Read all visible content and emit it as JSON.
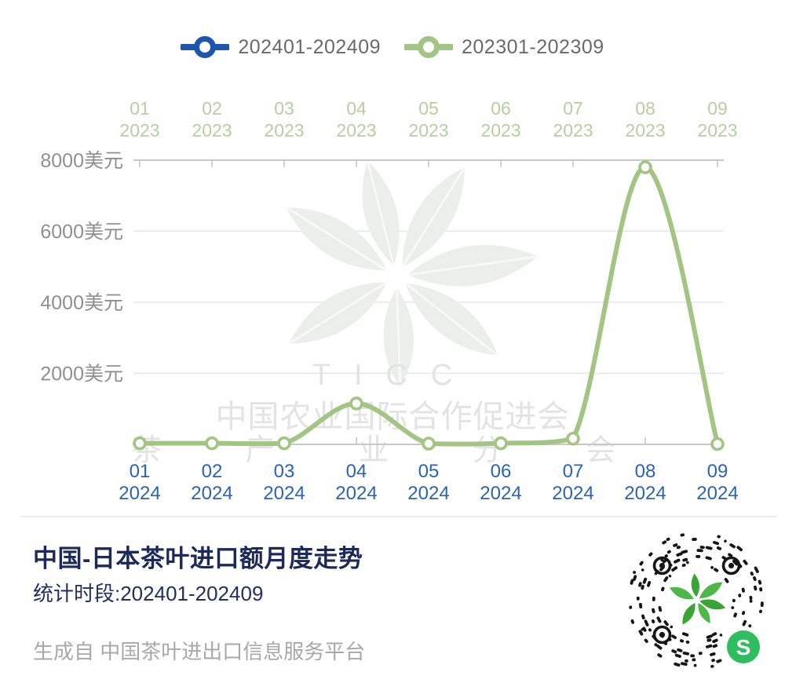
{
  "legend": {
    "items": [
      {
        "label": "202401-202409",
        "color": "#1e56ad"
      },
      {
        "label": "202301-202309",
        "color": "#a2c583"
      }
    ]
  },
  "chart_data": {
    "type": "line",
    "smooth": true,
    "grid": true,
    "legend_position": "top",
    "categories_top": [
      "01 2023",
      "02 2023",
      "03 2023",
      "04 2023",
      "05 2023",
      "06 2023",
      "07 2023",
      "08 2023",
      "09 2023"
    ],
    "categories_bottom": [
      "01 2024",
      "02 2024",
      "03 2024",
      "04 2024",
      "05 2024",
      "06 2024",
      "07 2024",
      "08 2024",
      "09 2024"
    ],
    "y_ticks": [
      "2000美元",
      "4000美元",
      "6000美元",
      "8000美元"
    ],
    "y_tick_values": [
      2000,
      4000,
      6000,
      8000
    ],
    "ylim": [
      0,
      8000
    ],
    "y_unit": "美元",
    "series": [
      {
        "name": "202401-202409",
        "color": "#1e56ad",
        "visible": false,
        "values": []
      },
      {
        "name": "202301-202309",
        "color": "#a2c583",
        "visible": true,
        "values": [
          30,
          30,
          30,
          1150,
          20,
          30,
          160,
          7800,
          10
        ]
      }
    ]
  },
  "watermark": {
    "ticc": "TICC",
    "line1": "中国农业国际合作促进会",
    "line2": "茶 产 业 分 会"
  },
  "caption": {
    "title": "中国-日本茶叶进口额月度走势",
    "period": "统计时段:202401-202409",
    "source": "生成自 中国茶叶进出口信息服务平台"
  },
  "qr": {
    "semantic": "wechat-miniprogram-code",
    "dot_color": "#161616",
    "badge_color": "#2ebd5f",
    "badge_glyph": "S",
    "leaf_color": "#4db848",
    "leaf_color_dark": "#3aa437"
  },
  "colors": {
    "axis": "#c8c8c8",
    "grid": "#e5e5ea",
    "y_label": "#8f8f8f",
    "top_label_green": "#b5cf9e",
    "bottom_label_blue": "#2d63b0",
    "watermark_gray": "#e3e3e3",
    "watermark_leaf": "#eceeeb",
    "marker_fill": "#ffffff"
  }
}
